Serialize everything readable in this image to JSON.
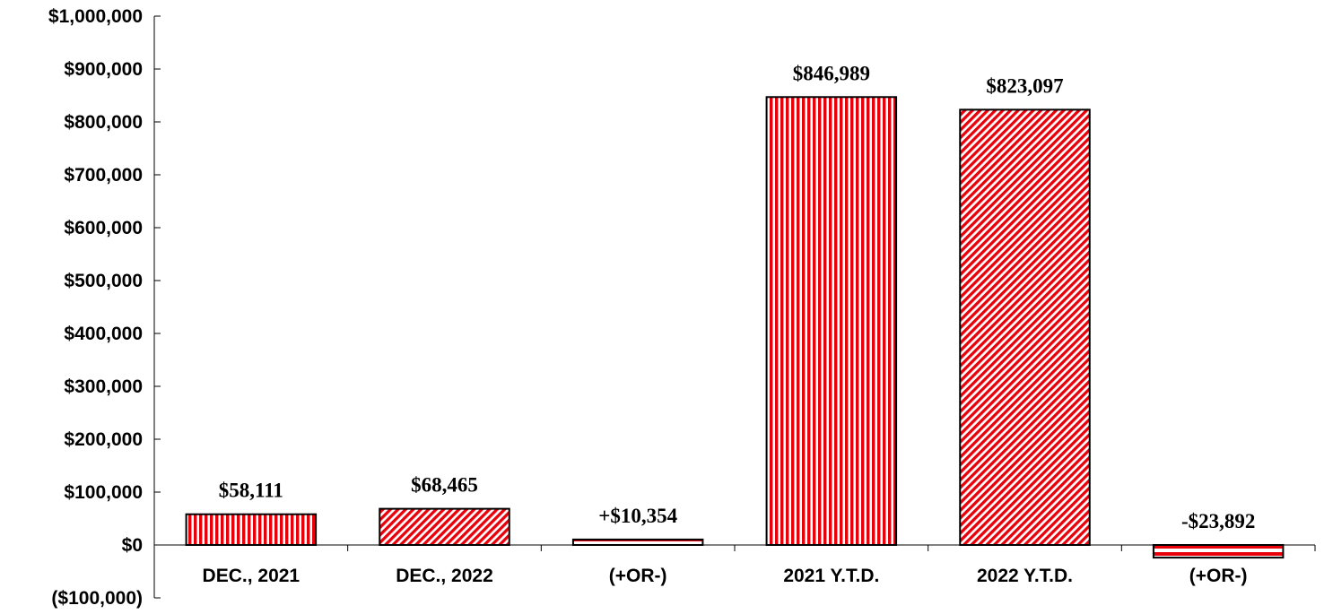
{
  "chart_data": {
    "type": "bar",
    "title": "",
    "xlabel": "",
    "ylabel": "",
    "categories": [
      "DEC., 2021",
      "DEC., 2022",
      "(+OR-)",
      "2021 Y.T.D.",
      "2022 Y.T.D.",
      "(+OR-)"
    ],
    "values": [
      58111,
      68465,
      10354,
      846989,
      823097,
      -23892
    ],
    "data_labels": [
      "$58,111",
      "$68,465",
      "+$10,354",
      "$846,989",
      "$823,097",
      "-$23,892"
    ],
    "patterns": [
      "vertical",
      "diagonal",
      "horizontal",
      "vertical",
      "diagonal",
      "horizontal"
    ],
    "ylim": [
      -100000,
      1000000
    ],
    "yticks": [
      1000000,
      900000,
      800000,
      700000,
      600000,
      500000,
      400000,
      300000,
      200000,
      100000,
      0,
      -100000
    ],
    "ytick_labels": [
      "$1,000,000",
      "$900,000",
      "$800,000",
      "$700,000",
      "$600,000",
      "$500,000",
      "$400,000",
      "$300,000",
      "$200,000",
      "$100,000",
      "$0",
      "($100,000)"
    ],
    "grid": false,
    "legend": "none",
    "colors": {
      "bar": "#e8000b",
      "stripe": "#ffffff",
      "outline": "#000000"
    }
  }
}
